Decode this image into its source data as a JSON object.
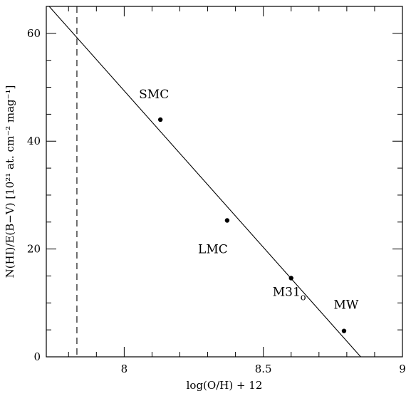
{
  "chart_data": {
    "type": "scatter",
    "xlabel": "log(O/H) + 12",
    "ylabel": "N(HI)/E(B−V) [10²¹ at. cm⁻² mag⁻¹]",
    "xlim": [
      7.72,
      9.0
    ],
    "ylim": [
      0,
      65
    ],
    "grid": false,
    "x_major_ticks": [
      8,
      8.5,
      9
    ],
    "x_tick_labels": [
      "8",
      "8.5",
      "9"
    ],
    "x_minor_step": 0.1,
    "y_major_ticks": [
      0,
      20,
      40,
      60
    ],
    "y_tick_labels": [
      "0",
      "20",
      "40",
      "60"
    ],
    "y_minor_step": 5,
    "points": [
      {
        "label": "SMC",
        "x": 8.13,
        "y": 44.0
      },
      {
        "label": "LMC",
        "x": 8.37,
        "y": 25.3
      },
      {
        "label": "M31",
        "label_subscript": "o",
        "x": 8.6,
        "y": 14.6
      },
      {
        "label": "MW",
        "x": 8.79,
        "y": 4.8
      }
    ],
    "fit_line": {
      "x": [
        7.72,
        8.85
      ],
      "y": [
        65.6,
        0
      ]
    },
    "vline": {
      "x": 7.83,
      "style": "dashed"
    }
  }
}
